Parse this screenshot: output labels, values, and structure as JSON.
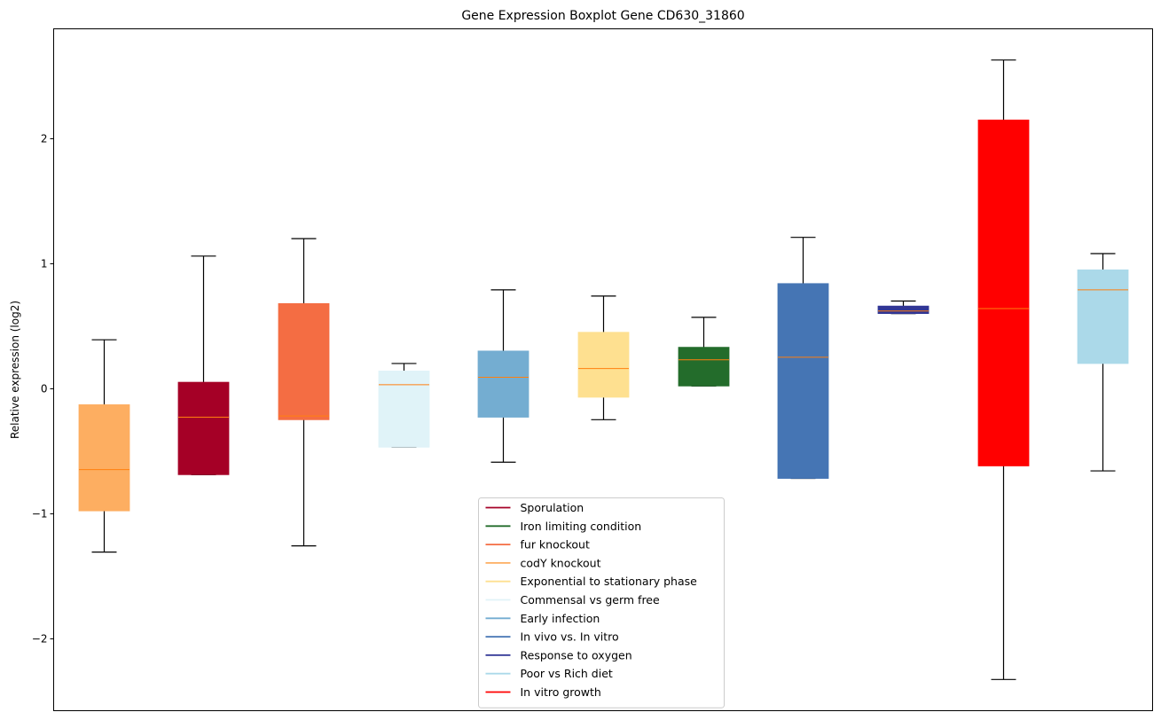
{
  "chart_data": {
    "type": "boxplot",
    "title": "Gene Expression Boxplot Gene CD630_31860",
    "xlabel": "",
    "ylabel": "Relative expression (log2)",
    "ylim": [
      -2.58,
      2.88
    ],
    "xlim": [
      0.5,
      11.5
    ],
    "yticks": [
      -2,
      -1,
      0,
      1,
      2
    ],
    "ytick_labels": [
      "−2",
      "−1",
      "0",
      "1",
      "2"
    ],
    "grid": false,
    "legend_position": "bottom-center",
    "median_color": "#ff7f0e",
    "boxes": [
      {
        "name": "codY knockout",
        "color": "#fdae61",
        "whislo": -1.31,
        "q1": -0.98,
        "med": -0.65,
        "q3": -0.13,
        "whishi": 0.39
      },
      {
        "name": "Sporulation",
        "color": "#a50026",
        "whislo": -0.69,
        "q1": -0.69,
        "med": -0.23,
        "q3": 0.05,
        "whishi": 1.06
      },
      {
        "name": "fur knockout",
        "color": "#f46d43",
        "whislo": -1.26,
        "q1": -0.25,
        "med": -0.22,
        "q3": 0.68,
        "whishi": 1.2
      },
      {
        "name": "Commensal vs germ free",
        "color": "#e0f3f8",
        "whislo": -0.47,
        "q1": -0.47,
        "med": 0.03,
        "q3": 0.14,
        "whishi": 0.2
      },
      {
        "name": "Early infection",
        "color": "#74add1",
        "whislo": -0.59,
        "q1": -0.23,
        "med": 0.09,
        "q3": 0.3,
        "whishi": 0.79
      },
      {
        "name": "Exponential to stationary phase",
        "color": "#fee090",
        "whislo": -0.25,
        "q1": -0.07,
        "med": 0.16,
        "q3": 0.45,
        "whishi": 0.74
      },
      {
        "name": "Iron limiting condition",
        "color": "#236c2b",
        "whislo": 0.02,
        "q1": 0.02,
        "med": 0.23,
        "q3": 0.33,
        "whishi": 0.57
      },
      {
        "name": "In vivo vs. In vitro",
        "color": "#4575b4",
        "whislo": -0.72,
        "q1": -0.72,
        "med": 0.25,
        "q3": 0.84,
        "whishi": 1.21
      },
      {
        "name": "Response to oxygen",
        "color": "#313695",
        "whislo": 0.6,
        "q1": 0.6,
        "med": 0.62,
        "q3": 0.66,
        "whishi": 0.7
      },
      {
        "name": "In vitro growth",
        "color": "#ff0000",
        "whislo": -2.33,
        "q1": -0.62,
        "med": 0.64,
        "q3": 2.15,
        "whishi": 2.63
      },
      {
        "name": "Poor vs Rich diet",
        "color": "#abd9e9",
        "whislo": -0.66,
        "q1": 0.2,
        "med": 0.79,
        "q3": 0.95,
        "whishi": 1.08
      }
    ],
    "legend": [
      {
        "label": "Sporulation",
        "color": "#a50026"
      },
      {
        "label": "Iron limiting condition",
        "color": "#236c2b"
      },
      {
        "label": "fur knockout",
        "color": "#f46d43"
      },
      {
        "label": "codY knockout",
        "color": "#fdae61"
      },
      {
        "label": "Exponential to stationary phase",
        "color": "#fee090"
      },
      {
        "label": "Commensal vs germ free",
        "color": "#e0f3f8"
      },
      {
        "label": "Early infection",
        "color": "#74add1"
      },
      {
        "label": "In vivo vs. In vitro",
        "color": "#4575b4"
      },
      {
        "label": "Response to oxygen",
        "color": "#313695"
      },
      {
        "label": "Poor vs Rich diet",
        "color": "#abd9e9"
      },
      {
        "label": "In vitro growth",
        "color": "#ff0000"
      }
    ]
  }
}
